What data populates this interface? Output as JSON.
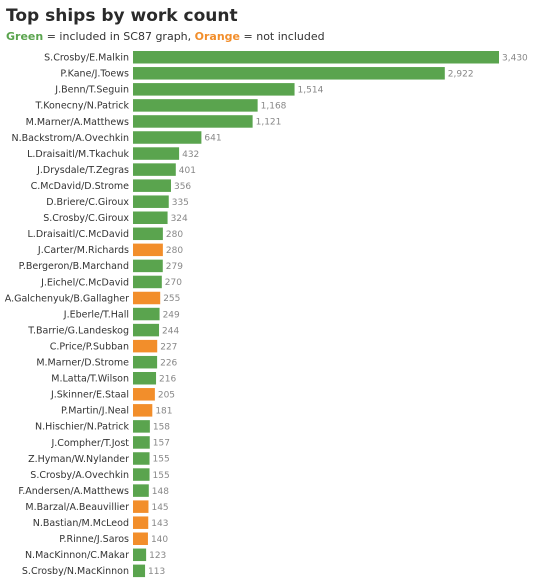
{
  "legend": {
    "green_word": "Green",
    "green_text": " = included in SC87 graph, ",
    "orange_word": "Orange",
    "orange_text": " = not included"
  },
  "colors": {
    "green": "#5aa44e",
    "orange": "#f28e2b"
  },
  "chart_data": {
    "type": "bar",
    "orientation": "horizontal",
    "title": "Top ships by work count",
    "xlim": [
      0,
      3430
    ],
    "grid": false,
    "categories": [
      "S.Crosby/E.Malkin",
      "P.Kane/J.Toews",
      "J.Benn/T.Seguin",
      "T.Konecny/N.Patrick",
      "M.Marner/A.Matthews",
      "N.Backstrom/A.Ovechkin",
      "L.Draisaitl/M.Tkachuk",
      "J.Drysdale/T.Zegras",
      "C.McDavid/D.Strome",
      "D.Briere/C.Giroux",
      "S.Crosby/C.Giroux",
      "L.Draisaitl/C.McDavid",
      "J.Carter/M.Richards",
      "P.Bergeron/B.Marchand",
      "J.Eichel/C.McDavid",
      "A.Galchenyuk/B.Gallagher",
      "J.Eberle/T.Hall",
      "T.Barrie/G.Landeskog",
      "C.Price/P.Subban",
      "M.Marner/D.Strome",
      "M.Latta/T.Wilson",
      "J.Skinner/E.Staal",
      "P.Martin/J.Neal",
      "N.Hischier/N.Patrick",
      "J.Compher/T.Jost",
      "Z.Hyman/W.Nylander",
      "S.Crosby/A.Ovechkin",
      "F.Andersen/A.Matthews",
      "M.Barzal/A.Beauvillier",
      "N.Bastian/M.McLeod",
      "P.Rinne/J.Saros",
      "N.MacKinnon/C.Makar",
      "S.Crosby/N.MacKinnon"
    ],
    "values": [
      3430,
      2922,
      1514,
      1168,
      1121,
      641,
      432,
      401,
      356,
      335,
      324,
      280,
      280,
      279,
      270,
      255,
      249,
      244,
      227,
      226,
      216,
      205,
      181,
      158,
      157,
      155,
      155,
      148,
      145,
      143,
      140,
      123,
      113
    ],
    "value_labels": [
      "3,430",
      "2,922",
      "1,514",
      "1,168",
      "1,121",
      "641",
      "432",
      "401",
      "356",
      "335",
      "324",
      "280",
      "280",
      "279",
      "270",
      "255",
      "249",
      "244",
      "227",
      "226",
      "216",
      "205",
      "181",
      "158",
      "157",
      "155",
      "155",
      "148",
      "145",
      "143",
      "140",
      "123",
      "113"
    ],
    "included": [
      true,
      true,
      true,
      true,
      true,
      true,
      true,
      true,
      true,
      true,
      true,
      true,
      false,
      true,
      true,
      false,
      true,
      true,
      false,
      true,
      true,
      false,
      false,
      true,
      true,
      true,
      true,
      true,
      false,
      false,
      false,
      true,
      true
    ]
  }
}
